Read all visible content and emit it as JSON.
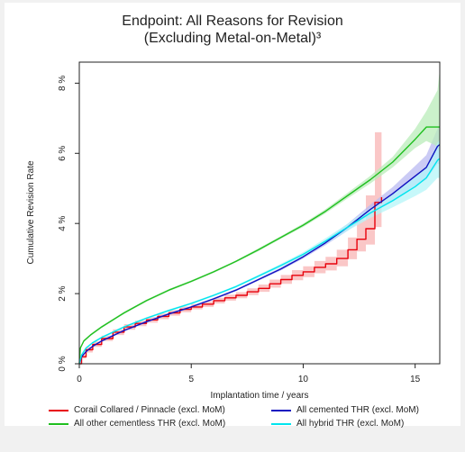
{
  "chart_data": {
    "type": "line",
    "title_line1": "Endpoint: All Reasons for Revision",
    "title_line2": "(Excluding Metal-on-Metal)³",
    "xlabel": "Implantation time / years",
    "ylabel": "Cumulative Revision Rate",
    "xlim": [
      0,
      16.1
    ],
    "ylim": [
      0,
      8.6
    ],
    "x_ticks": [
      0,
      5,
      10,
      15
    ],
    "y_ticks": [
      0,
      2,
      4,
      6,
      8
    ],
    "y_tick_labels": [
      "0 %",
      "2 %",
      "4 %",
      "6 %",
      "8 %"
    ],
    "legend_position": "bottom",
    "series": [
      {
        "name": "Corail Collared / Pinnacle (excl. MoM)",
        "color": "#e8000b",
        "band_color": "#f8b4b4",
        "step": true,
        "x": [
          0,
          0.1,
          0.3,
          0.6,
          1,
          1.5,
          2,
          2.5,
          3,
          3.5,
          4,
          4.5,
          5,
          5.5,
          6,
          6.5,
          7,
          7.5,
          8,
          8.5,
          9,
          9.5,
          10,
          10.5,
          11,
          11.5,
          12,
          12.4,
          12.8,
          13.2,
          13.5
        ],
        "y": [
          0,
          0.2,
          0.4,
          0.55,
          0.72,
          0.9,
          1.05,
          1.15,
          1.25,
          1.35,
          1.45,
          1.55,
          1.62,
          1.7,
          1.8,
          1.88,
          1.95,
          2.05,
          2.15,
          2.28,
          2.4,
          2.52,
          2.62,
          2.75,
          2.85,
          3.0,
          3.25,
          3.55,
          3.85,
          4.6,
          4.75
        ],
        "lower": [
          0,
          0.15,
          0.32,
          0.48,
          0.65,
          0.82,
          0.97,
          1.07,
          1.17,
          1.27,
          1.37,
          1.47,
          1.55,
          1.62,
          1.72,
          1.8,
          1.87,
          1.96,
          2.05,
          2.17,
          2.28,
          2.38,
          2.47,
          2.58,
          2.66,
          2.78,
          2.98,
          3.2,
          3.4,
          3.9,
          3.9
        ],
        "upper": [
          0,
          0.25,
          0.48,
          0.63,
          0.8,
          0.98,
          1.13,
          1.23,
          1.33,
          1.43,
          1.53,
          1.63,
          1.7,
          1.78,
          1.88,
          1.97,
          2.04,
          2.15,
          2.26,
          2.4,
          2.53,
          2.67,
          2.78,
          2.93,
          3.05,
          3.25,
          3.6,
          4.1,
          4.8,
          6.6,
          7.4
        ]
      },
      {
        "name": "All cemented THR (excl. MoM)",
        "color": "#1010c0",
        "band_color": "#b9b9f2",
        "step": false,
        "x": [
          0,
          0.1,
          0.3,
          0.6,
          1,
          2,
          3,
          4,
          5,
          6,
          7,
          8,
          9,
          10,
          11,
          12,
          13,
          14,
          14.5,
          15,
          15.5,
          16,
          16.1
        ],
        "y": [
          0,
          0.2,
          0.35,
          0.5,
          0.65,
          0.95,
          1.2,
          1.42,
          1.62,
          1.85,
          2.1,
          2.4,
          2.7,
          3.05,
          3.45,
          3.9,
          4.4,
          4.85,
          5.1,
          5.35,
          5.6,
          6.2,
          6.25
        ],
        "lower": [
          0,
          0.18,
          0.32,
          0.47,
          0.62,
          0.92,
          1.17,
          1.39,
          1.59,
          1.82,
          2.07,
          2.37,
          2.66,
          3.0,
          3.38,
          3.8,
          4.26,
          4.66,
          4.86,
          5.06,
          5.25,
          5.7,
          5.7
        ],
        "upper": [
          0,
          0.22,
          0.38,
          0.53,
          0.68,
          0.98,
          1.23,
          1.45,
          1.65,
          1.88,
          2.13,
          2.43,
          2.74,
          3.1,
          3.52,
          4.0,
          4.54,
          5.04,
          5.34,
          5.64,
          5.95,
          6.7,
          6.8
        ]
      },
      {
        "name": "All other cementless THR (excl. MoM)",
        "color": "#1fbf1f",
        "band_color": "#b9ecb9",
        "step": false,
        "x": [
          0,
          0.05,
          0.2,
          0.5,
          1,
          2,
          3,
          4,
          5,
          6,
          7,
          8,
          9,
          10,
          11,
          12,
          13,
          14,
          15,
          15.5,
          16,
          16.1
        ],
        "y": [
          0,
          0.45,
          0.65,
          0.82,
          1.05,
          1.45,
          1.8,
          2.1,
          2.35,
          2.62,
          2.92,
          3.25,
          3.6,
          3.95,
          4.35,
          4.8,
          5.25,
          5.75,
          6.4,
          6.75,
          6.75,
          6.75
        ],
        "lower": [
          0,
          0.42,
          0.62,
          0.79,
          1.02,
          1.42,
          1.77,
          2.07,
          2.32,
          2.59,
          2.89,
          3.21,
          3.56,
          3.9,
          4.29,
          4.72,
          5.14,
          5.6,
          6.15,
          6.35,
          6.2,
          6.2
        ],
        "upper": [
          0,
          0.48,
          0.68,
          0.85,
          1.08,
          1.48,
          1.83,
          2.13,
          2.38,
          2.65,
          2.95,
          3.29,
          3.64,
          4.0,
          4.41,
          4.88,
          5.36,
          5.9,
          6.7,
          7.2,
          7.8,
          8.4
        ]
      },
      {
        "name": "All hybrid THR (excl. MoM)",
        "color": "#00e5ee",
        "band_color": "#b4f6f8",
        "step": false,
        "x": [
          0,
          0.1,
          0.3,
          0.6,
          1,
          2,
          3,
          4,
          5,
          6,
          7,
          8,
          9,
          10,
          11,
          12,
          13,
          14,
          14.5,
          15,
          15.5,
          16,
          16.1
        ],
        "y": [
          0,
          0.25,
          0.45,
          0.6,
          0.75,
          1.05,
          1.3,
          1.52,
          1.72,
          1.95,
          2.2,
          2.5,
          2.8,
          3.12,
          3.5,
          3.9,
          4.3,
          4.65,
          4.85,
          5.05,
          5.3,
          5.8,
          5.85
        ],
        "lower": [
          0,
          0.22,
          0.42,
          0.57,
          0.72,
          1.02,
          1.27,
          1.49,
          1.69,
          1.92,
          2.17,
          2.46,
          2.75,
          3.06,
          3.42,
          3.8,
          4.16,
          4.46,
          4.62,
          4.78,
          4.96,
          5.3,
          5.3
        ],
        "upper": [
          0,
          0.28,
          0.48,
          0.63,
          0.78,
          1.08,
          1.33,
          1.55,
          1.75,
          1.98,
          2.23,
          2.54,
          2.85,
          3.18,
          3.58,
          4.0,
          4.44,
          4.84,
          5.08,
          5.32,
          5.64,
          6.3,
          6.4
        ]
      }
    ]
  },
  "legend_order": [
    0,
    2,
    1,
    3
  ]
}
